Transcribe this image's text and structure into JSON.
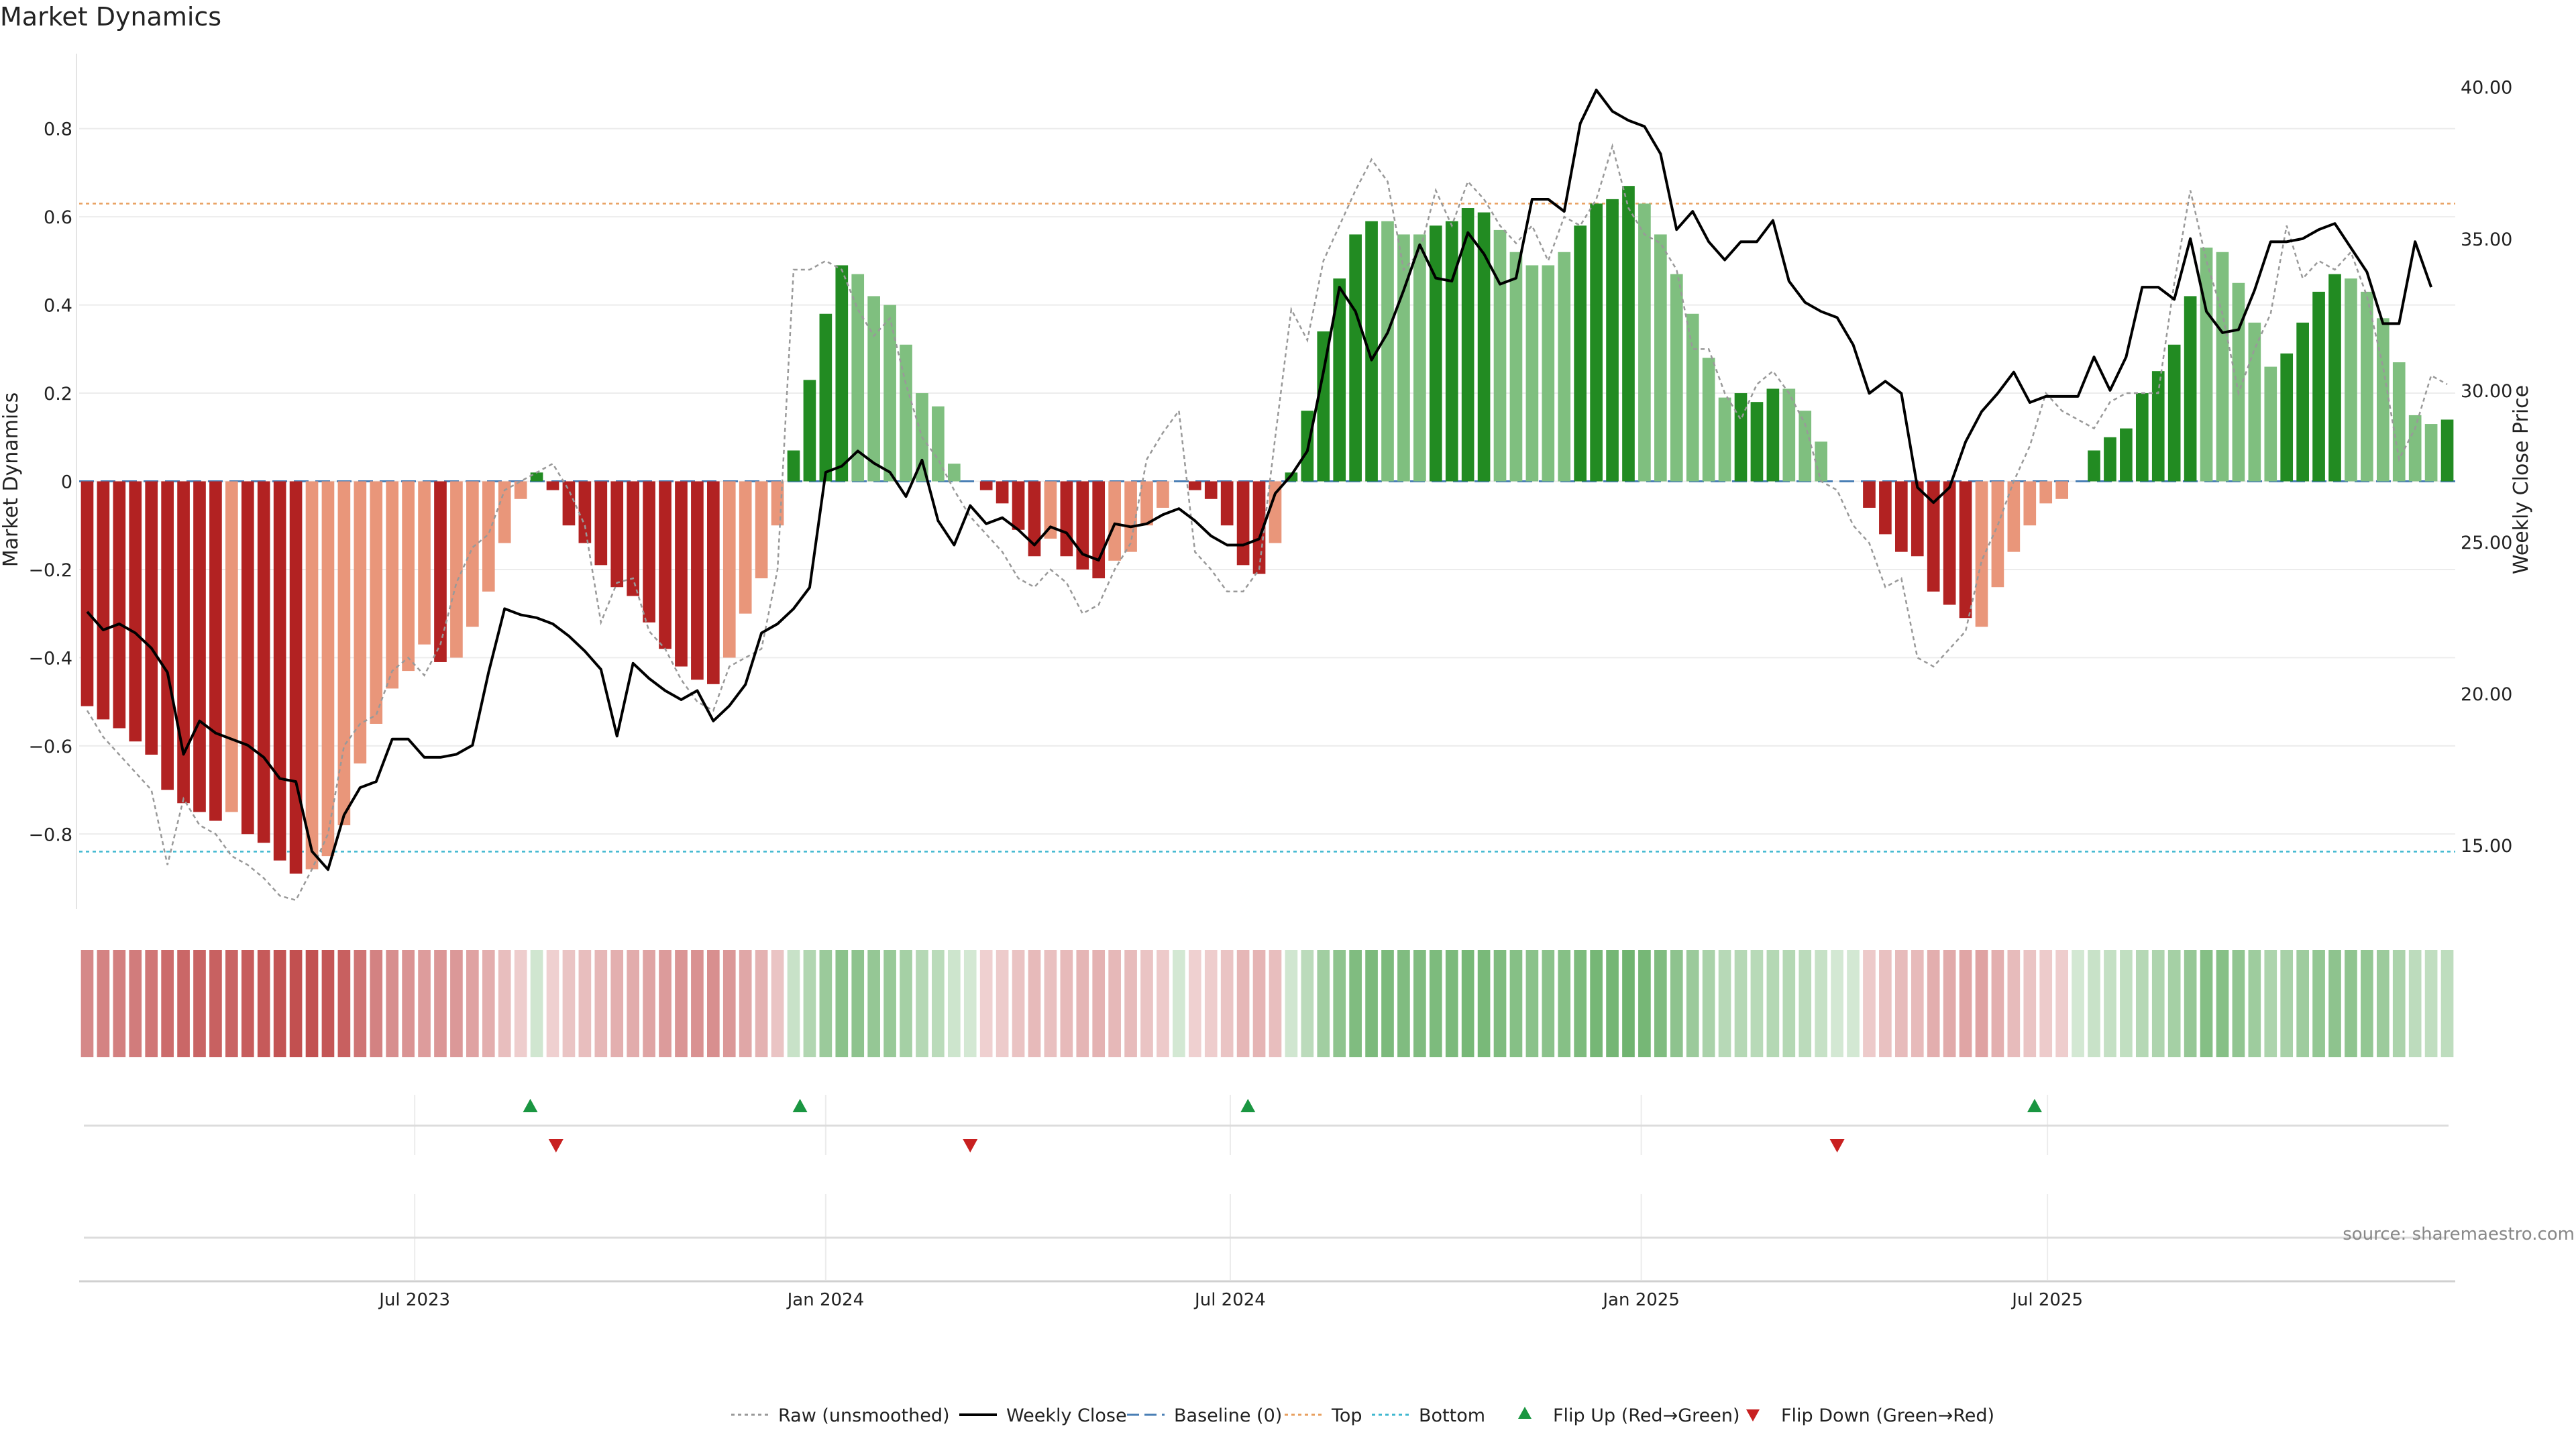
{
  "chart_data": {
    "type": "bar",
    "title": "Market Dynamics",
    "ylabel": "Market Dynamics",
    "ylabel_right": "Weekly Close Price",
    "source": "source: sharemaestro.com",
    "ylim": [
      -0.97,
      0.97
    ],
    "y2lim": [
      12.9,
      41.1
    ],
    "yticks": [
      "0.8",
      "0.6",
      "0.4",
      "0.2",
      "0",
      "−0.2",
      "−0.4",
      "−0.6",
      "−0.8"
    ],
    "yticks_values": [
      0.8,
      0.6,
      0.4,
      0.2,
      0,
      -0.2,
      -0.4,
      -0.6,
      -0.8
    ],
    "y2ticks": [
      "40.00",
      "35.00",
      "30.00",
      "25.00",
      "20.00",
      "15.00"
    ],
    "y2ticks_values": [
      40,
      35,
      30,
      25,
      20,
      15
    ],
    "xticks": [
      "Jul 2023",
      "Jan 2024",
      "Jul 2024",
      "Jan 2025",
      "Jul 2025"
    ],
    "xticks_index": [
      20.4,
      46.0,
      71.2,
      96.8,
      122.1
    ],
    "top_line": 0.63,
    "bottom_line": -0.84,
    "colors": {
      "strong_up": "#228b22",
      "weak_up": "#7fbf7f",
      "strong_down": "#b22222",
      "weak_down": "#e9967a",
      "raw": "#999999",
      "close": "#000000",
      "baseline": "#4a7fb5",
      "top": "#e8a060",
      "bottom": "#40b8d0",
      "flip_up": "#1a9641",
      "flip_down": "#c82020"
    },
    "series": [
      {
        "name": "Market Dynamics",
        "values": [
          -0.51,
          -0.54,
          -0.56,
          -0.59,
          -0.62,
          -0.7,
          -0.73,
          -0.75,
          -0.77,
          -0.75,
          -0.8,
          -0.82,
          -0.86,
          -0.89,
          -0.88,
          -0.85,
          -0.78,
          -0.64,
          -0.55,
          -0.47,
          -0.43,
          -0.37,
          -0.41,
          -0.4,
          -0.33,
          -0.25,
          -0.14,
          -0.04,
          0.02,
          -0.02,
          -0.1,
          -0.14,
          -0.19,
          -0.24,
          -0.26,
          -0.32,
          -0.38,
          -0.42,
          -0.45,
          -0.46,
          -0.4,
          -0.3,
          -0.22,
          -0.1,
          0.07,
          0.23,
          0.38,
          0.49,
          0.47,
          0.42,
          0.4,
          0.31,
          0.2,
          0.17,
          0.04,
          0.0,
          -0.02,
          -0.05,
          -0.11,
          -0.17,
          -0.13,
          -0.17,
          -0.2,
          -0.22,
          -0.18,
          -0.16,
          -0.1,
          -0.06,
          0.0,
          -0.02,
          -0.04,
          -0.1,
          -0.19,
          -0.21,
          -0.14,
          0.02,
          0.16,
          0.34,
          0.46,
          0.56,
          0.59,
          0.59,
          0.56,
          0.56,
          0.58,
          0.59,
          0.62,
          0.61,
          0.57,
          0.52,
          0.49,
          0.49,
          0.52,
          0.58,
          0.63,
          0.64,
          0.67,
          0.63,
          0.56,
          0.47,
          0.38,
          0.28,
          0.19,
          0.2,
          0.18,
          0.21,
          0.21,
          0.16,
          0.09,
          0.0,
          0.0,
          -0.06,
          -0.12,
          -0.16,
          -0.17,
          -0.25,
          -0.28,
          -0.31,
          -0.33,
          -0.24,
          -0.16,
          -0.1,
          -0.05,
          -0.04,
          0.0,
          0.07,
          0.1,
          0.12,
          0.2,
          0.25,
          0.31,
          0.42,
          0.53,
          0.52,
          0.45,
          0.36,
          0.26,
          0.29,
          0.36,
          0.43,
          0.47,
          0.46,
          0.43,
          0.37,
          0.27,
          0.15,
          0.13,
          0.14
        ],
        "strength": [
          "strong",
          "strong",
          "strong",
          "strong",
          "strong",
          "strong",
          "strong",
          "strong",
          "strong",
          "weak",
          "strong",
          "strong",
          "strong",
          "strong",
          "weak",
          "weak",
          "weak",
          "weak",
          "weak",
          "weak",
          "weak",
          "weak",
          "strong",
          "weak",
          "weak",
          "weak",
          "weak",
          "weak",
          "strong",
          "strong",
          "strong",
          "strong",
          "strong",
          "strong",
          "strong",
          "strong",
          "strong",
          "strong",
          "strong",
          "strong",
          "weak",
          "weak",
          "weak",
          "weak",
          "strong",
          "strong",
          "strong",
          "strong",
          "weak",
          "weak",
          "weak",
          "weak",
          "weak",
          "weak",
          "weak",
          "weak",
          "strong",
          "strong",
          "strong",
          "strong",
          "weak",
          "strong",
          "strong",
          "strong",
          "weak",
          "weak",
          "weak",
          "weak",
          "weak",
          "strong",
          "strong",
          "strong",
          "strong",
          "strong",
          "weak",
          "strong",
          "strong",
          "strong",
          "strong",
          "strong",
          "strong",
          "weak",
          "weak",
          "weak",
          "strong",
          "strong",
          "strong",
          "strong",
          "weak",
          "weak",
          "weak",
          "weak",
          "weak",
          "strong",
          "strong",
          "strong",
          "strong",
          "weak",
          "weak",
          "weak",
          "weak",
          "weak",
          "weak",
          "strong",
          "strong",
          "strong",
          "weak",
          "weak",
          "weak",
          "strong",
          "strong",
          "strong",
          "strong",
          "strong",
          "strong",
          "strong",
          "strong",
          "strong",
          "weak",
          "weak",
          "weak",
          "weak",
          "weak",
          "weak",
          "strong",
          "strong",
          "strong",
          "strong",
          "strong",
          "strong",
          "strong",
          "strong",
          "weak",
          "weak",
          "weak",
          "weak",
          "weak",
          "strong",
          "strong",
          "strong",
          "strong",
          "weak",
          "weak",
          "weak",
          "weak",
          "weak",
          "weak",
          "strong"
        ]
      },
      {
        "name": "Raw (unsmoothed)",
        "values": [
          -0.52,
          -0.58,
          -0.62,
          -0.66,
          -0.7,
          -0.87,
          -0.72,
          -0.78,
          -0.8,
          -0.85,
          -0.87,
          -0.9,
          -0.94,
          -0.95,
          -0.88,
          -0.8,
          -0.6,
          -0.55,
          -0.53,
          -0.43,
          -0.4,
          -0.44,
          -0.37,
          -0.23,
          -0.15,
          -0.12,
          -0.02,
          0.0,
          0.02,
          0.04,
          -0.02,
          -0.1,
          -0.32,
          -0.23,
          -0.22,
          -0.34,
          -0.38,
          -0.45,
          -0.5,
          -0.52,
          -0.42,
          -0.4,
          -0.38,
          -0.2,
          0.48,
          0.48,
          0.5,
          0.48,
          0.39,
          0.33,
          0.37,
          0.22,
          0.1,
          0.05,
          -0.02,
          -0.08,
          -0.12,
          -0.16,
          -0.22,
          -0.24,
          -0.2,
          -0.23,
          -0.3,
          -0.28,
          -0.2,
          -0.14,
          0.05,
          0.11,
          0.16,
          -0.16,
          -0.2,
          -0.25,
          -0.25,
          -0.2,
          0.1,
          0.39,
          0.32,
          0.5,
          0.58,
          0.66,
          0.73,
          0.68,
          0.48,
          0.52,
          0.66,
          0.58,
          0.68,
          0.64,
          0.58,
          0.54,
          0.58,
          0.5,
          0.6,
          0.58,
          0.64,
          0.76,
          0.62,
          0.56,
          0.54,
          0.48,
          0.3,
          0.3,
          0.2,
          0.14,
          0.22,
          0.25,
          0.2,
          0.13,
          0.0,
          -0.02,
          -0.1,
          -0.14,
          -0.24,
          -0.22,
          -0.4,
          -0.42,
          -0.38,
          -0.34,
          -0.18,
          -0.1,
          0.0,
          0.08,
          0.2,
          0.16,
          0.14,
          0.12,
          0.18,
          0.2,
          0.2,
          0.2,
          0.45,
          0.66,
          0.5,
          0.38,
          0.2,
          0.3,
          0.38,
          0.58,
          0.46,
          0.5,
          0.48,
          0.52,
          0.42,
          0.26,
          0.05,
          0.12,
          0.24,
          0.22
        ]
      },
      {
        "name": "Weekly Close",
        "values": [
          22.7,
          22.1,
          22.3,
          22.0,
          21.5,
          20.7,
          18.0,
          19.1,
          18.7,
          18.5,
          18.3,
          17.9,
          17.2,
          17.1,
          14.8,
          14.2,
          16.0,
          16.9,
          17.1,
          18.5,
          18.5,
          17.9,
          17.9,
          18.0,
          18.3,
          20.7,
          22.8,
          22.6,
          22.5,
          22.3,
          21.9,
          21.4,
          20.8,
          18.6,
          21.0,
          20.5,
          20.1,
          19.8,
          20.1,
          19.1,
          19.6,
          20.3,
          22.0,
          22.3,
          22.8,
          23.5,
          27.3,
          27.5,
          28.0,
          27.6,
          27.3,
          26.5,
          27.7,
          25.7,
          24.9,
          26.2,
          25.6,
          25.8,
          25.4,
          24.9,
          25.5,
          25.3,
          24.6,
          24.4,
          25.6,
          25.5,
          25.6,
          25.9,
          26.1,
          25.7,
          25.2,
          24.9,
          24.9,
          25.1,
          26.6,
          27.2,
          28.0,
          30.6,
          33.4,
          32.6,
          31.0,
          31.9,
          33.3,
          34.8,
          33.7,
          33.6,
          35.2,
          34.5,
          33.5,
          33.7,
          36.3,
          36.3,
          35.9,
          38.8,
          39.9,
          39.2,
          38.9,
          38.7,
          37.8,
          35.3,
          35.9,
          34.9,
          34.3,
          34.9,
          34.9,
          35.6,
          33.6,
          32.9,
          32.6,
          32.4,
          31.5,
          29.9,
          30.3,
          29.9,
          26.8,
          26.3,
          26.8,
          28.3,
          29.3,
          29.9,
          30.6,
          29.6,
          29.8,
          29.8,
          29.8,
          31.1,
          30.0,
          31.1,
          33.4,
          33.4,
          33.0,
          35.0,
          32.6,
          31.9,
          32.0,
          33.3,
          34.9,
          34.9,
          35.0,
          35.3,
          35.5,
          34.7,
          33.9,
          32.2,
          32.2,
          34.9,
          33.4
        ]
      }
    ],
    "flip_up_index": [
      27.6,
      44.4,
      72.3,
      121.3
    ],
    "flip_down_index": [
      29.2,
      55.0,
      109.0
    ],
    "legend": [
      {
        "name": "Raw (unsmoothed)",
        "style": "raw"
      },
      {
        "name": "Weekly Close",
        "style": "close"
      },
      {
        "name": "Baseline (0)",
        "style": "baseline"
      },
      {
        "name": "Top",
        "style": "top"
      },
      {
        "name": "Bottom",
        "style": "bottom"
      },
      {
        "name": "Flip Up (Red→Green)",
        "style": "flip_up"
      },
      {
        "name": "Flip Down (Green→Red)",
        "style": "flip_down"
      }
    ],
    "legend_position": "bottom-center",
    "grid": true
  }
}
